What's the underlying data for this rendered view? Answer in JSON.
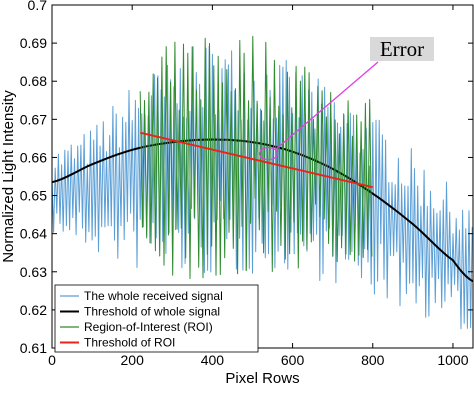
{
  "chart_data": {
    "type": "line",
    "xlabel": "Pixel Rows",
    "ylabel": "Normalized Light Intensity",
    "xlim": [
      0,
      1050
    ],
    "ylim": [
      0.61,
      0.7
    ],
    "x_ticks": [
      0,
      200,
      400,
      600,
      800,
      1000
    ],
    "x_tick_labels": [
      "0",
      "200",
      "400",
      "600",
      "800",
      "1000"
    ],
    "y_ticks": [
      0.61,
      0.62,
      0.63,
      0.64,
      0.65,
      0.66,
      0.67,
      0.68,
      0.69,
      0.7
    ],
    "y_tick_labels": [
      "0.61",
      "0.62",
      "0.63",
      "0.64",
      "0.65",
      "0.66",
      "0.67",
      "0.68",
      "0.69",
      "0.7"
    ],
    "grid": false,
    "legend_position": "bottom-left",
    "series": [
      {
        "name": "The whole received signal",
        "color": "#5b9fd6",
        "style": "oscillating",
        "x_range": [
          0,
          1050
        ],
        "approx_upper_envelope": [
          [
            0,
            0.662
          ],
          [
            100,
            0.668
          ],
          [
            200,
            0.68
          ],
          [
            400,
            0.692
          ],
          [
            600,
            0.685
          ],
          [
            800,
            0.672
          ],
          [
            1000,
            0.652
          ],
          [
            1050,
            0.645
          ]
        ],
        "approx_lower_envelope": [
          [
            0,
            0.64
          ],
          [
            100,
            0.635
          ],
          [
            200,
            0.63
          ],
          [
            400,
            0.628
          ],
          [
            600,
            0.63
          ],
          [
            800,
            0.623
          ],
          [
            1000,
            0.615
          ],
          [
            1050,
            0.613
          ]
        ]
      },
      {
        "name": "Threshold of whole signal",
        "color": "#000000",
        "x": [
          0,
          100,
          200,
          300,
          400,
          500,
          600,
          700,
          800,
          900,
          1000,
          1050
        ],
        "y": [
          0.6535,
          0.6582,
          0.662,
          0.664,
          0.6647,
          0.664,
          0.6615,
          0.657,
          0.6505,
          0.6425,
          0.633,
          0.6275
        ]
      },
      {
        "name": "Region-of-Interest (ROI)",
        "color": "#2e8b2e",
        "style": "oscillating",
        "x_range": [
          220,
          800
        ],
        "approx_upper_envelope": [
          [
            220,
            0.685
          ],
          [
            400,
            0.697
          ],
          [
            600,
            0.69
          ],
          [
            800,
            0.676
          ]
        ],
        "approx_lower_envelope": [
          [
            220,
            0.63
          ],
          [
            400,
            0.626
          ],
          [
            600,
            0.63
          ],
          [
            800,
            0.632
          ]
        ]
      },
      {
        "name": "Threshold of ROI",
        "color": "#e8251a",
        "x": [
          220,
          800
        ],
        "y": [
          0.6665,
          0.6522
        ]
      }
    ],
    "annotations": [
      {
        "text": "Error",
        "target_x": 540,
        "target_y": 0.661,
        "color": "#e040e0"
      }
    ]
  }
}
